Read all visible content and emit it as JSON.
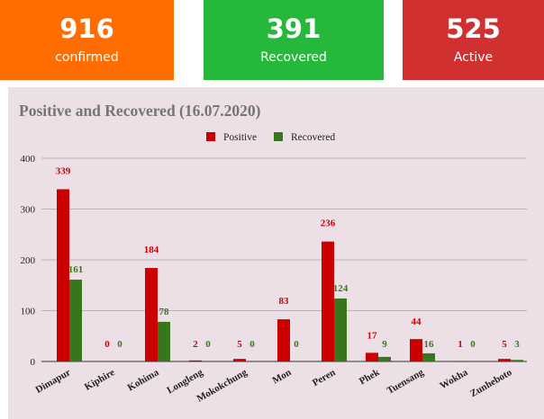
{
  "stats": [
    {
      "id": "confirmed",
      "value": "916",
      "label": "confirmed",
      "color": "#ff6d00"
    },
    {
      "id": "recovered",
      "value": "391",
      "label": "Recovered",
      "color": "#25b83a"
    },
    {
      "id": "active",
      "value": "525",
      "label": "Active",
      "color": "#d03030"
    }
  ],
  "chart_data": {
    "type": "bar",
    "title": "Positive and Recovered (16.07.2020)",
    "xlabel": "",
    "ylabel": "",
    "ylim": [
      0,
      400
    ],
    "yticks": [
      0,
      100,
      200,
      300,
      400
    ],
    "grid": true,
    "legend_position": "top",
    "categories": [
      "Dimapur",
      "Kiphire",
      "Kohima",
      "Longleng",
      "Mokokchung",
      "Mon",
      "Peren",
      "Phek",
      "Tuensang",
      "Wokha",
      "Zunheboto"
    ],
    "series": [
      {
        "name": "Positive",
        "color": "#cc0000",
        "values": [
          339,
          0,
          184,
          2,
          5,
          83,
          236,
          17,
          44,
          1,
          5
        ]
      },
      {
        "name": "Recovered",
        "color": "#38761d",
        "values": [
          161,
          0,
          78,
          0,
          0,
          0,
          124,
          9,
          16,
          0,
          3
        ]
      }
    ]
  }
}
